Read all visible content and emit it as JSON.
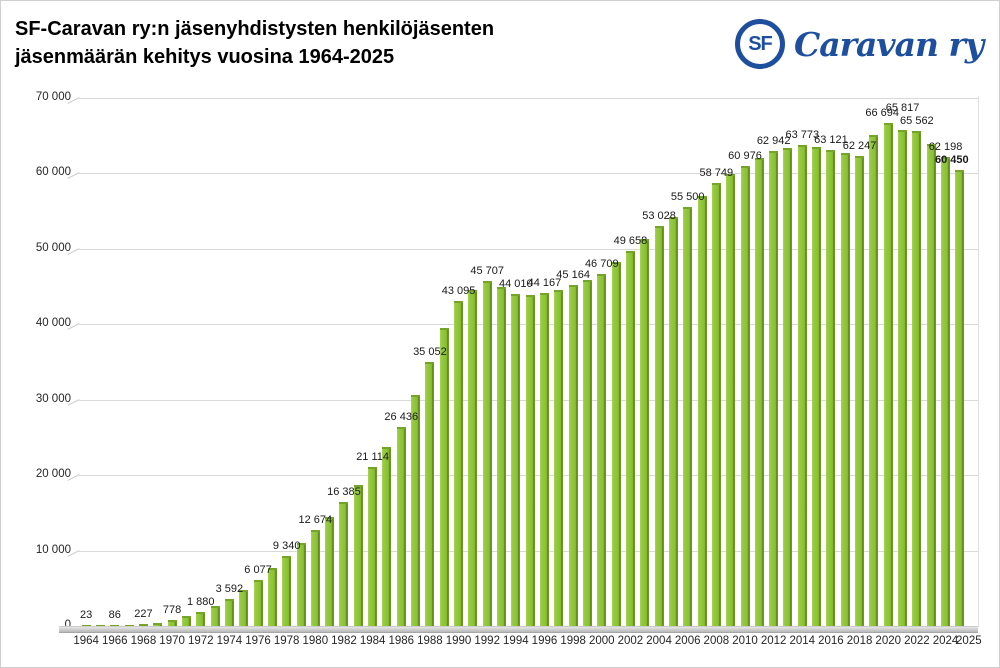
{
  "header": {
    "title_line1": "SF-Caravan ry:n jäsenyhdistysten henkilöjäsenten",
    "title_line2": "jäsenmäärän kehitys vuosina 1964-2025",
    "logo": {
      "monogram": "SF",
      "wordmark": "Caravan ry",
      "color": "#1d4f9e"
    }
  },
  "chart_data": {
    "type": "bar",
    "title": "SF-Caravan ry:n jäsenyhdistysten henkilöjäsenten jäsenmäärän kehitys vuosina 1964-2025",
    "xlabel": "",
    "ylabel": "",
    "ylim": [
      0,
      70000
    ],
    "grid": true,
    "legend": false,
    "bar_color": "#8cc136",
    "bar_edge_color": "#648f1f",
    "grid_color": "#d9d9d9",
    "yticks": [
      "0",
      "10 000",
      "20 000",
      "30 000",
      "40 000",
      "50 000",
      "60 000",
      "70 000"
    ],
    "xticks": [
      1964,
      1966,
      1968,
      1970,
      1972,
      1974,
      1976,
      1978,
      1980,
      1982,
      1984,
      1986,
      1988,
      1990,
      1992,
      1994,
      1996,
      1998,
      2000,
      2002,
      2004,
      2006,
      2008,
      2010,
      2012,
      2014,
      2016,
      2018,
      2020,
      2022,
      2024,
      2025
    ],
    "points": [
      {
        "year": 1964,
        "value": 23,
        "label": "23"
      },
      {
        "year": 1965,
        "value": 50,
        "label": null
      },
      {
        "year": 1966,
        "value": 86,
        "label": "86"
      },
      {
        "year": 1967,
        "value": 150,
        "label": null
      },
      {
        "year": 1968,
        "value": 227,
        "label": "227"
      },
      {
        "year": 1969,
        "value": 450,
        "label": null
      },
      {
        "year": 1970,
        "value": 778,
        "label": "778"
      },
      {
        "year": 1971,
        "value": 1300,
        "label": null
      },
      {
        "year": 1972,
        "value": 1880,
        "label": "1 880"
      },
      {
        "year": 1973,
        "value": 2700,
        "label": null
      },
      {
        "year": 1974,
        "value": 3592,
        "label": "3 592"
      },
      {
        "year": 1975,
        "value": 4800,
        "label": null
      },
      {
        "year": 1976,
        "value": 6077,
        "label": "6 077"
      },
      {
        "year": 1977,
        "value": 7700,
        "label": null
      },
      {
        "year": 1978,
        "value": 9340,
        "label": "9 340"
      },
      {
        "year": 1979,
        "value": 11000,
        "label": null
      },
      {
        "year": 1980,
        "value": 12674,
        "label": "12 674"
      },
      {
        "year": 1981,
        "value": 14500,
        "label": null
      },
      {
        "year": 1982,
        "value": 16385,
        "label": "16 385"
      },
      {
        "year": 1983,
        "value": 18700,
        "label": null
      },
      {
        "year": 1984,
        "value": 21114,
        "label": "21 114"
      },
      {
        "year": 1985,
        "value": 23700,
        "label": null
      },
      {
        "year": 1986,
        "value": 26436,
        "label": "26 436"
      },
      {
        "year": 1987,
        "value": 30600,
        "label": null
      },
      {
        "year": 1988,
        "value": 35052,
        "label": "35 052"
      },
      {
        "year": 1989,
        "value": 39500,
        "label": null
      },
      {
        "year": 1990,
        "value": 43095,
        "label": "43 095"
      },
      {
        "year": 1991,
        "value": 44500,
        "label": null
      },
      {
        "year": 1992,
        "value": 45707,
        "label": "45 707"
      },
      {
        "year": 1993,
        "value": 45000,
        "label": null
      },
      {
        "year": 1994,
        "value": 44010,
        "label": "44 010"
      },
      {
        "year": 1995,
        "value": 43900,
        "label": null
      },
      {
        "year": 1996,
        "value": 44167,
        "label": "44 167"
      },
      {
        "year": 1997,
        "value": 44600,
        "label": null
      },
      {
        "year": 1998,
        "value": 45164,
        "label": "45 164"
      },
      {
        "year": 1999,
        "value": 45900,
        "label": null
      },
      {
        "year": 2000,
        "value": 46709,
        "label": "46 709"
      },
      {
        "year": 2001,
        "value": 48200,
        "label": null
      },
      {
        "year": 2002,
        "value": 49658,
        "label": "49 658"
      },
      {
        "year": 2003,
        "value": 51300,
        "label": null
      },
      {
        "year": 2004,
        "value": 53028,
        "label": "53 028"
      },
      {
        "year": 2005,
        "value": 54200,
        "label": null
      },
      {
        "year": 2006,
        "value": 55500,
        "label": "55 500"
      },
      {
        "year": 2007,
        "value": 57000,
        "label": null
      },
      {
        "year": 2008,
        "value": 58749,
        "label": "58 749"
      },
      {
        "year": 2009,
        "value": 59900,
        "label": null
      },
      {
        "year": 2010,
        "value": 60976,
        "label": "60 976"
      },
      {
        "year": 2011,
        "value": 62000,
        "label": null
      },
      {
        "year": 2012,
        "value": 62942,
        "label": "62 942"
      },
      {
        "year": 2013,
        "value": 63400,
        "label": null
      },
      {
        "year": 2014,
        "value": 63773,
        "label": "63 773"
      },
      {
        "year": 2015,
        "value": 63500,
        "label": null
      },
      {
        "year": 2016,
        "value": 63121,
        "label": "63 121"
      },
      {
        "year": 2017,
        "value": 62700,
        "label": null
      },
      {
        "year": 2018,
        "value": 62247,
        "label": "62 247"
      },
      {
        "year": 2019,
        "value": 65100,
        "label": null
      },
      {
        "year": 2020,
        "value": 66694,
        "label": "66 694",
        "dx": -6
      },
      {
        "year": 2021,
        "value": 65817,
        "label": "65 817",
        "raise": 12
      },
      {
        "year": 2022,
        "value": 65562,
        "label": "65 562"
      },
      {
        "year": 2023,
        "value": 63900,
        "label": null
      },
      {
        "year": 2024,
        "value": 62198,
        "label": "62 198"
      },
      {
        "year": 2025,
        "value": 60450,
        "label": "60 450",
        "bold": true,
        "dx": -8
      }
    ]
  }
}
